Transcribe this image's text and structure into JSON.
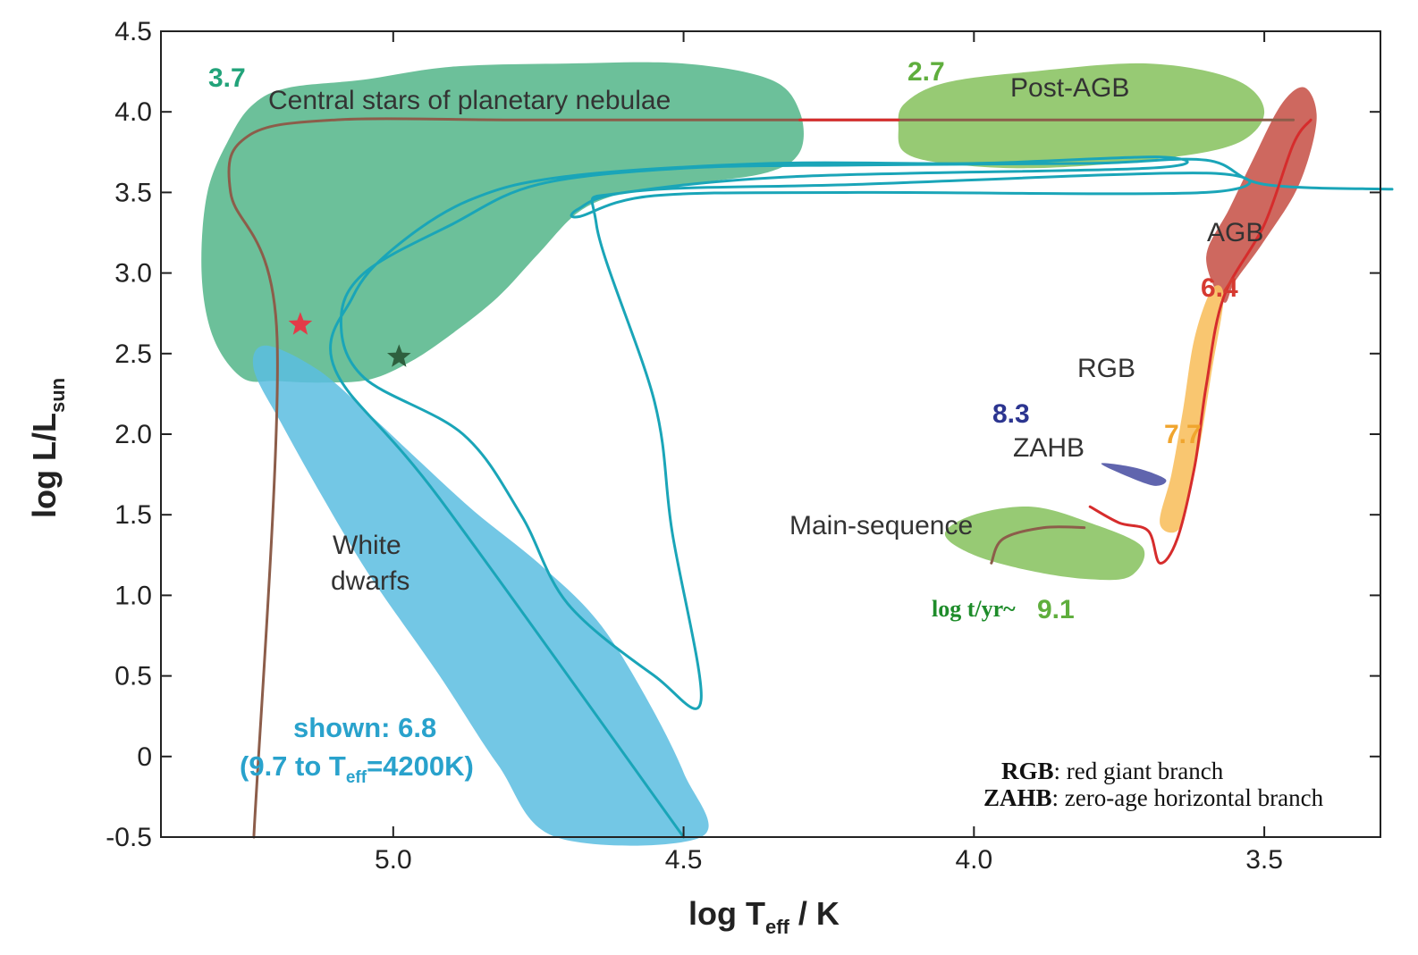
{
  "chart_data": {
    "type": "line",
    "xlabel_main": "log T",
    "xlabel_sub": "eff",
    "xlabel_tail": " / K",
    "ylabel_main": "log L/L",
    "ylabel_sub": "sun",
    "x_reversed": true,
    "xlim": [
      5.4,
      3.3
    ],
    "ylim": [
      -0.5,
      4.5
    ],
    "x_ticks": [
      {
        "value": 5.0,
        "label": "5.0"
      },
      {
        "value": 4.5,
        "label": "4.5"
      },
      {
        "value": 4.0,
        "label": "4.0"
      },
      {
        "value": 3.5,
        "label": "3.5"
      }
    ],
    "y_ticks": [
      {
        "value": 4.5,
        "label": "4.5"
      },
      {
        "value": 4.0,
        "label": "4.0"
      },
      {
        "value": 3.5,
        "label": "3.5"
      },
      {
        "value": 3.0,
        "label": "3.0"
      },
      {
        "value": 2.5,
        "label": "2.5"
      },
      {
        "value": 2.0,
        "label": "2.0"
      },
      {
        "value": 1.5,
        "label": "1.5"
      },
      {
        "value": 1.0,
        "label": "1.0"
      },
      {
        "value": 0.5,
        "label": "0.5"
      },
      {
        "value": 0,
        "label": "0"
      },
      {
        "value": -0.5,
        "label": "-0.5"
      }
    ],
    "regions": [
      {
        "label": "Central stars of planetary nebulae",
        "color": "#5cb98f",
        "points": [
          [
            5.26,
            2.35
          ],
          [
            5.31,
            2.6
          ],
          [
            5.33,
            3.0
          ],
          [
            5.32,
            3.5
          ],
          [
            5.28,
            3.85
          ],
          [
            5.24,
            4.05
          ],
          [
            5.18,
            4.15
          ],
          [
            5.05,
            4.2
          ],
          [
            4.9,
            4.28
          ],
          [
            4.7,
            4.3
          ],
          [
            4.5,
            4.3
          ],
          [
            4.35,
            4.2
          ],
          [
            4.3,
            4.0
          ],
          [
            4.3,
            3.75
          ],
          [
            4.36,
            3.62
          ],
          [
            4.5,
            3.55
          ],
          [
            4.6,
            3.5
          ],
          [
            4.68,
            3.38
          ],
          [
            4.75,
            3.12
          ],
          [
            4.82,
            2.85
          ],
          [
            4.9,
            2.62
          ],
          [
            4.97,
            2.45
          ],
          [
            5.04,
            2.34
          ],
          [
            5.12,
            2.32
          ],
          [
            5.2,
            2.33
          ]
        ],
        "value_label": "3.7",
        "value_color": "#22a37a"
      },
      {
        "label": "White dwarfs",
        "color": "#5bbde0",
        "points": [
          [
            5.22,
            2.55
          ],
          [
            5.13,
            2.4
          ],
          [
            5.04,
            2.12
          ],
          [
            4.96,
            1.85
          ],
          [
            4.86,
            1.52
          ],
          [
            4.75,
            1.2
          ],
          [
            4.65,
            0.85
          ],
          [
            4.57,
            0.4
          ],
          [
            4.5,
            -0.1
          ],
          [
            4.47,
            -0.5
          ],
          [
            4.72,
            -0.5
          ],
          [
            4.82,
            -0.05
          ],
          [
            4.92,
            0.5
          ],
          [
            5.04,
            1.12
          ],
          [
            5.12,
            1.6
          ],
          [
            5.19,
            2.05
          ],
          [
            5.24,
            2.4
          ]
        ],
        "value_label": "shown: 6.8",
        "value_label_2a": "(9.7 to T",
        "value_label_2_sub": "eff",
        "value_label_2b": "=4200K)",
        "value_color": "#29a2cc"
      },
      {
        "label": "Post-AGB",
        "color": "#8cc465",
        "points": [
          [
            4.13,
            3.9
          ],
          [
            4.12,
            4.05
          ],
          [
            4.05,
            4.18
          ],
          [
            3.9,
            4.25
          ],
          [
            3.7,
            4.3
          ],
          [
            3.55,
            4.2
          ],
          [
            3.5,
            4.0
          ],
          [
            3.55,
            3.8
          ],
          [
            3.7,
            3.7
          ],
          [
            3.9,
            3.65
          ],
          [
            4.05,
            3.68
          ],
          [
            4.12,
            3.75
          ]
        ],
        "value_label": "2.7",
        "value_color": "#5fae3d"
      },
      {
        "label": "AGB",
        "color": "#c9584e",
        "points": [
          [
            3.57,
            2.82
          ],
          [
            3.6,
            3.1
          ],
          [
            3.56,
            3.4
          ],
          [
            3.52,
            3.7
          ],
          [
            3.47,
            4.05
          ],
          [
            3.43,
            4.15
          ],
          [
            3.41,
            3.95
          ],
          [
            3.44,
            3.55
          ],
          [
            3.5,
            3.2
          ],
          [
            3.55,
            2.95
          ]
        ],
        "value_label": "6.4",
        "value_color": "#d63a31"
      },
      {
        "label": "RGB",
        "color": "#f8c060",
        "points": [
          [
            3.68,
            1.45
          ],
          [
            3.66,
            1.75
          ],
          [
            3.64,
            2.15
          ],
          [
            3.62,
            2.6
          ],
          [
            3.59,
            2.9
          ],
          [
            3.57,
            2.85
          ],
          [
            3.59,
            2.4
          ],
          [
            3.61,
            1.95
          ],
          [
            3.63,
            1.6
          ],
          [
            3.65,
            1.4
          ]
        ],
        "value_label": "7.7",
        "value_color": "#f0a52e"
      },
      {
        "label": "ZAHB",
        "color": "#4f54a5",
        "points": [
          [
            3.78,
            1.82
          ],
          [
            3.75,
            1.76
          ],
          [
            3.69,
            1.68
          ],
          [
            3.67,
            1.72
          ],
          [
            3.72,
            1.79
          ]
        ],
        "value_label": "8.3",
        "value_color": "#2c3590"
      },
      {
        "label": "Main-sequence",
        "color": "#8cc465",
        "points": [
          [
            4.05,
            1.38
          ],
          [
            4.0,
            1.5
          ],
          [
            3.9,
            1.55
          ],
          [
            3.8,
            1.45
          ],
          [
            3.71,
            1.3
          ],
          [
            3.73,
            1.12
          ],
          [
            3.8,
            1.1
          ],
          [
            3.9,
            1.15
          ],
          [
            4.0,
            1.25
          ]
        ],
        "value_label": "9.1",
        "value_color": "#5fae3d",
        "value_prefix": "log t/yr~",
        "value_prefix_color": "#1e8c2a"
      }
    ],
    "series": [
      {
        "color": "#8c5d4a",
        "points": [
          [
            5.24,
            -0.5
          ],
          [
            5.2,
            2.6
          ],
          [
            5.28,
            3.5
          ],
          [
            5.25,
            3.85
          ],
          [
            5.1,
            3.95
          ],
          [
            4.8,
            3.95
          ],
          [
            4.5,
            3.95
          ],
          [
            4.3,
            3.95
          ],
          [
            4.1,
            3.95
          ],
          [
            3.9,
            3.95
          ],
          [
            3.7,
            3.95
          ],
          [
            3.45,
            3.95
          ]
        ]
      },
      {
        "color": "#d62c2c",
        "points": [
          [
            4.3,
            3.95
          ],
          [
            4.13,
            3.95
          ]
        ]
      },
      {
        "color": "#1aa5b8",
        "points": [
          [
            4.5,
            -0.5
          ],
          [
            4.92,
            1.6
          ],
          [
            5.1,
            2.4
          ],
          [
            5.07,
            2.85
          ],
          [
            5.0,
            3.15
          ],
          [
            4.87,
            3.45
          ],
          [
            4.7,
            3.6
          ],
          [
            4.35,
            3.68
          ],
          [
            4.0,
            3.68
          ],
          [
            3.68,
            3.72
          ],
          [
            3.7,
            3.65
          ],
          [
            4.3,
            3.6
          ],
          [
            4.6,
            3.5
          ],
          [
            4.68,
            3.4
          ],
          [
            4.68,
            3.35
          ],
          [
            4.55,
            3.48
          ],
          [
            4.2,
            3.5
          ],
          [
            3.6,
            3.5
          ],
          [
            3.6,
            3.62
          ],
          [
            4.2,
            3.55
          ],
          [
            4.6,
            3.5
          ],
          [
            4.65,
            3.3
          ],
          [
            4.55,
            2.2
          ],
          [
            4.52,
            1.4
          ],
          [
            4.47,
            0.35
          ],
          [
            4.55,
            0.5
          ],
          [
            4.7,
            0.95
          ],
          [
            4.78,
            1.5
          ],
          [
            4.88,
            2.0
          ],
          [
            5.05,
            2.35
          ],
          [
            5.09,
            2.7
          ],
          [
            5.05,
            3.0
          ],
          [
            4.9,
            3.3
          ],
          [
            4.75,
            3.55
          ],
          [
            4.5,
            3.65
          ],
          [
            4.2,
            3.67
          ],
          [
            3.8,
            3.68
          ],
          [
            3.6,
            3.7
          ],
          [
            3.5,
            3.55
          ],
          [
            3.28,
            3.52
          ]
        ]
      },
      {
        "color": "#d62c2c",
        "points": [
          [
            3.8,
            1.55
          ],
          [
            3.75,
            1.45
          ],
          [
            3.7,
            1.4
          ],
          [
            3.68,
            1.2
          ],
          [
            3.65,
            1.35
          ],
          [
            3.62,
            1.8
          ],
          [
            3.6,
            2.3
          ],
          [
            3.57,
            2.85
          ],
          [
            3.5,
            3.3
          ],
          [
            3.45,
            3.8
          ],
          [
            3.42,
            3.95
          ]
        ]
      },
      {
        "color": "#8c5d4a",
        "points": [
          [
            3.97,
            1.2
          ],
          [
            3.95,
            1.35
          ],
          [
            3.88,
            1.42
          ],
          [
            3.81,
            1.42
          ]
        ]
      }
    ],
    "markers": [
      {
        "x": 5.16,
        "y": 2.68,
        "color": "#e33b48",
        "kind": "star"
      },
      {
        "x": 4.99,
        "y": 2.48,
        "color": "#2e5f3e",
        "kind": "star"
      }
    ]
  },
  "legend_notes": [
    {
      "term": "RGB",
      "desc": ": red giant branch"
    },
    {
      "term": "ZAHB",
      "desc": ": zero-age horizontal branch"
    }
  ]
}
